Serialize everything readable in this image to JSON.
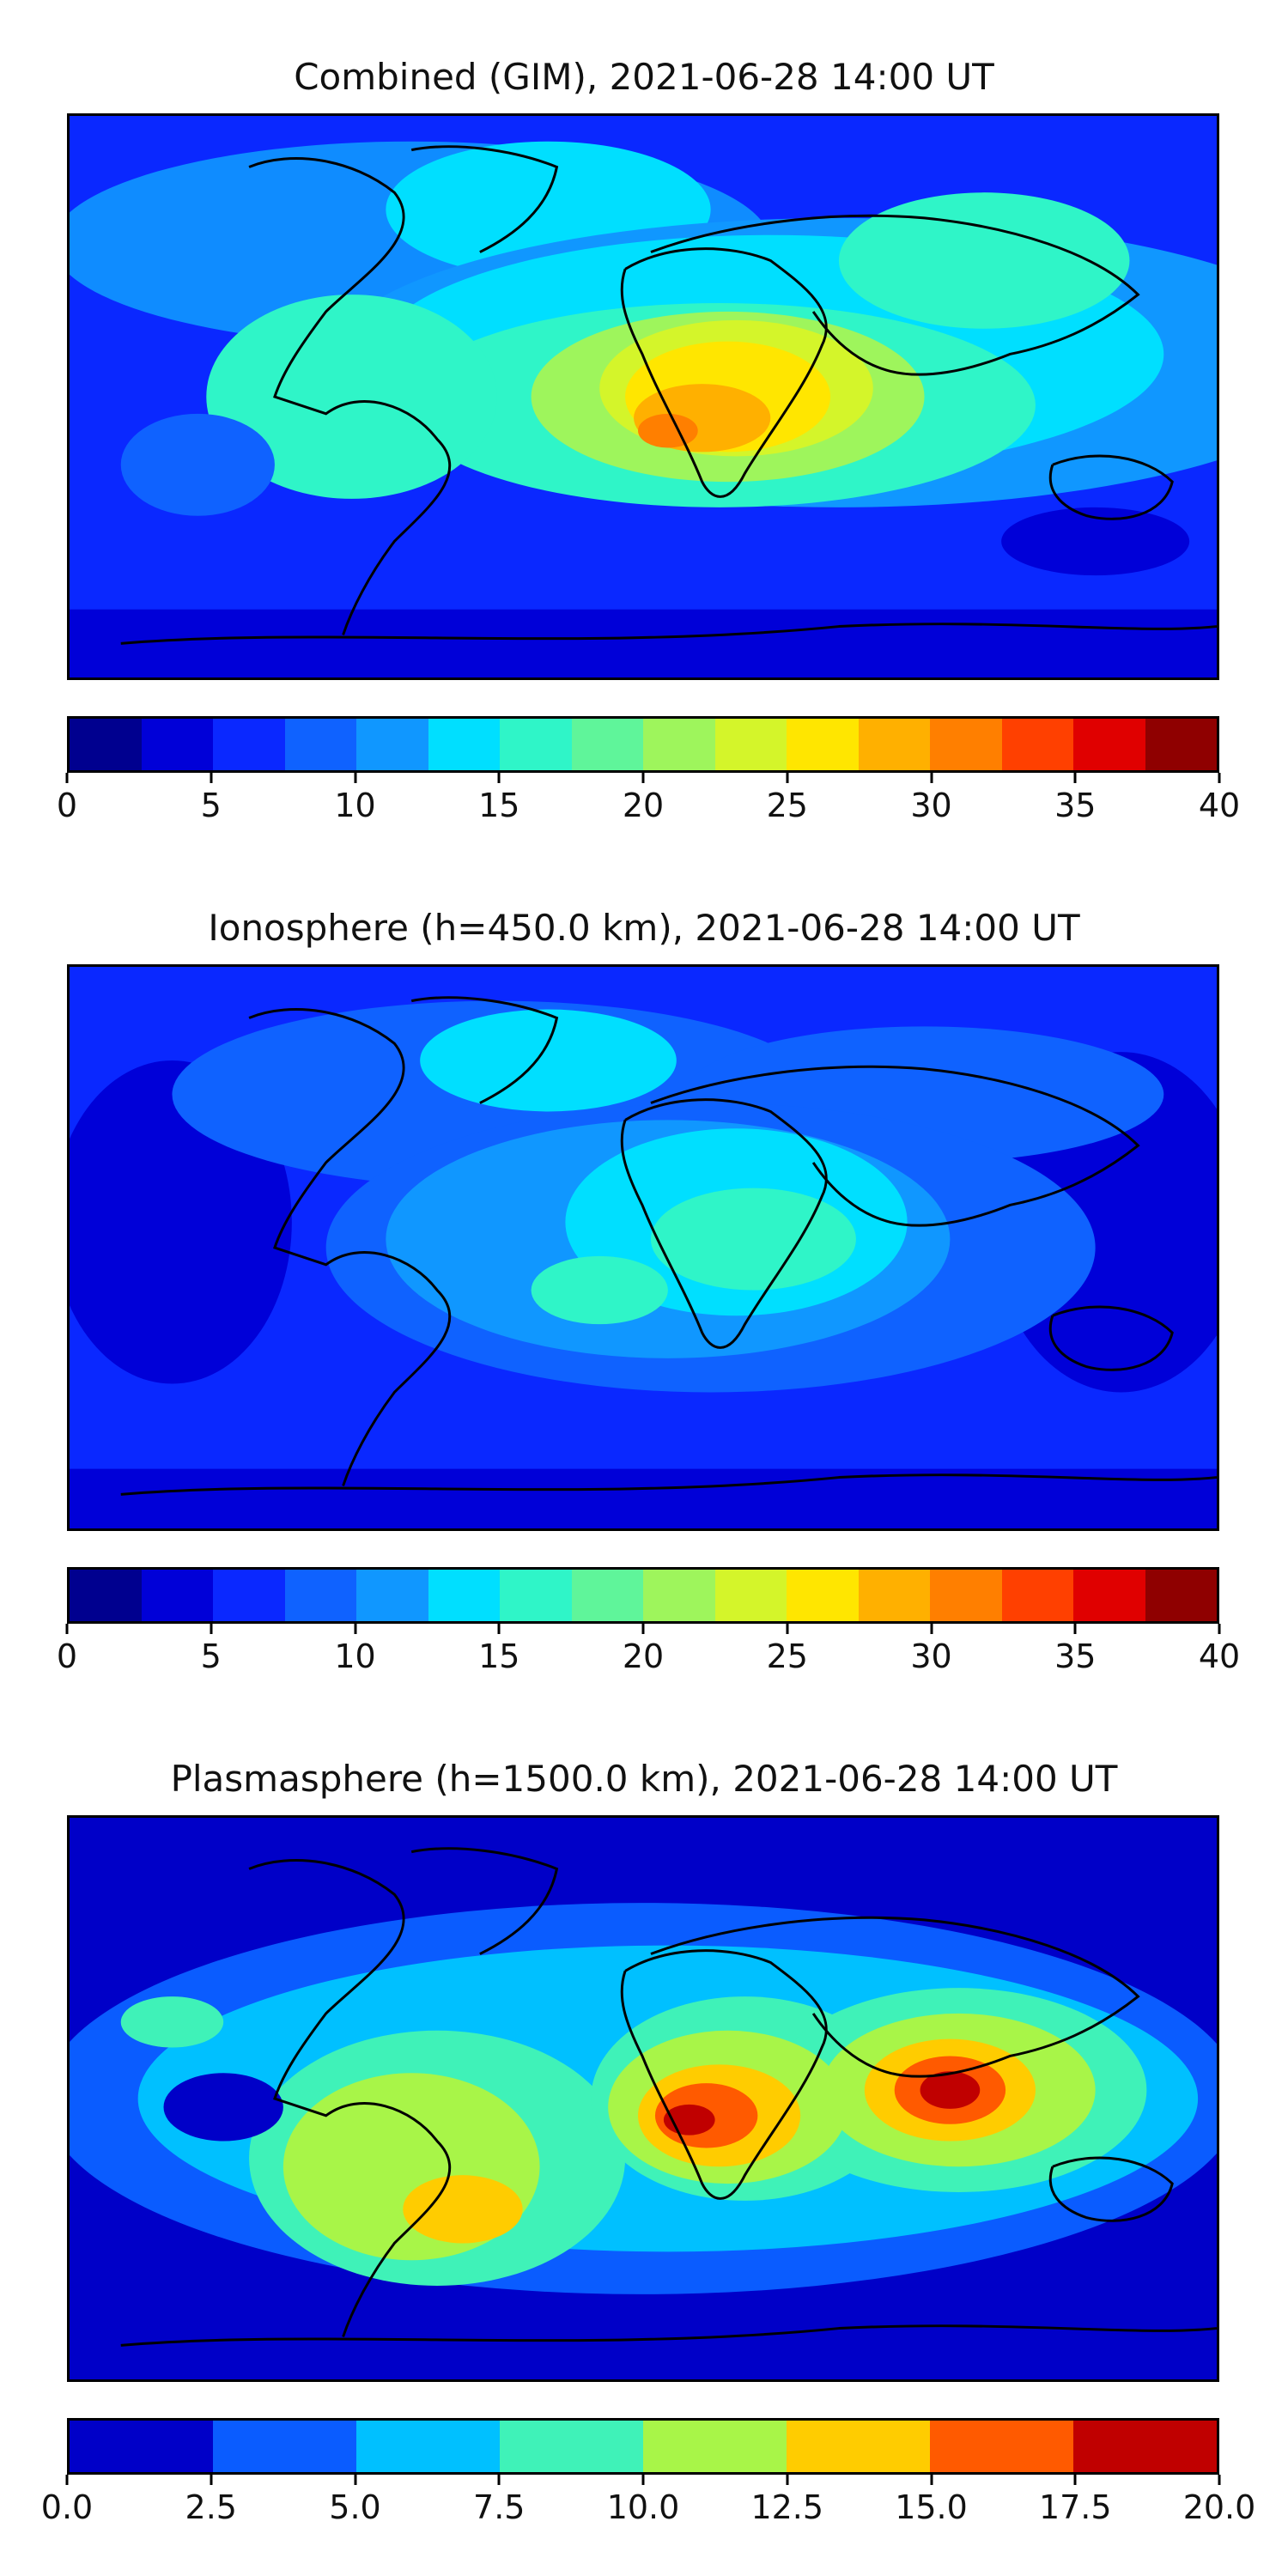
{
  "panels": [
    {
      "title": "Combined (GIM), 2021-06-28 14:00 UT",
      "colorbar_colors": [
        "#00008f",
        "#0000d8",
        "#0a28ff",
        "#0f62ff",
        "#1097ff",
        "#00dfff",
        "#2ff5c8",
        "#5ff59a",
        "#9ef55c",
        "#d4f52a",
        "#ffe600",
        "#ffb000",
        "#ff7f00",
        "#ff4000",
        "#e00000",
        "#8f0000"
      ],
      "colorbar_ticks": [
        "0",
        "5",
        "10",
        "15",
        "20",
        "25",
        "30",
        "35",
        "40"
      ],
      "range": [
        0,
        40
      ]
    },
    {
      "title": "Ionosphere  (h=450.0 km), 2021-06-28 14:00 UT",
      "colorbar_colors": [
        "#00008f",
        "#0000d8",
        "#0a28ff",
        "#0f62ff",
        "#1097ff",
        "#00dfff",
        "#2ff5c8",
        "#5ff59a",
        "#9ef55c",
        "#d4f52a",
        "#ffe600",
        "#ffb000",
        "#ff7f00",
        "#ff4000",
        "#e00000",
        "#8f0000"
      ],
      "colorbar_ticks": [
        "0",
        "5",
        "10",
        "15",
        "20",
        "25",
        "30",
        "35",
        "40"
      ],
      "range": [
        0,
        40
      ]
    },
    {
      "title": "Plasmasphere (h=1500.0 km), 2021-06-28 14:00 UT",
      "colorbar_colors": [
        "#0000c8",
        "#0a5cff",
        "#00c0ff",
        "#3ff2b8",
        "#a8f548",
        "#ffcc00",
        "#ff5a00",
        "#c00000"
      ],
      "colorbar_ticks": [
        "0.0",
        "2.5",
        "5.0",
        "7.5",
        "10.0",
        "12.5",
        "15.0",
        "17.5",
        "20.0"
      ],
      "range": [
        0,
        20
      ]
    }
  ]
}
